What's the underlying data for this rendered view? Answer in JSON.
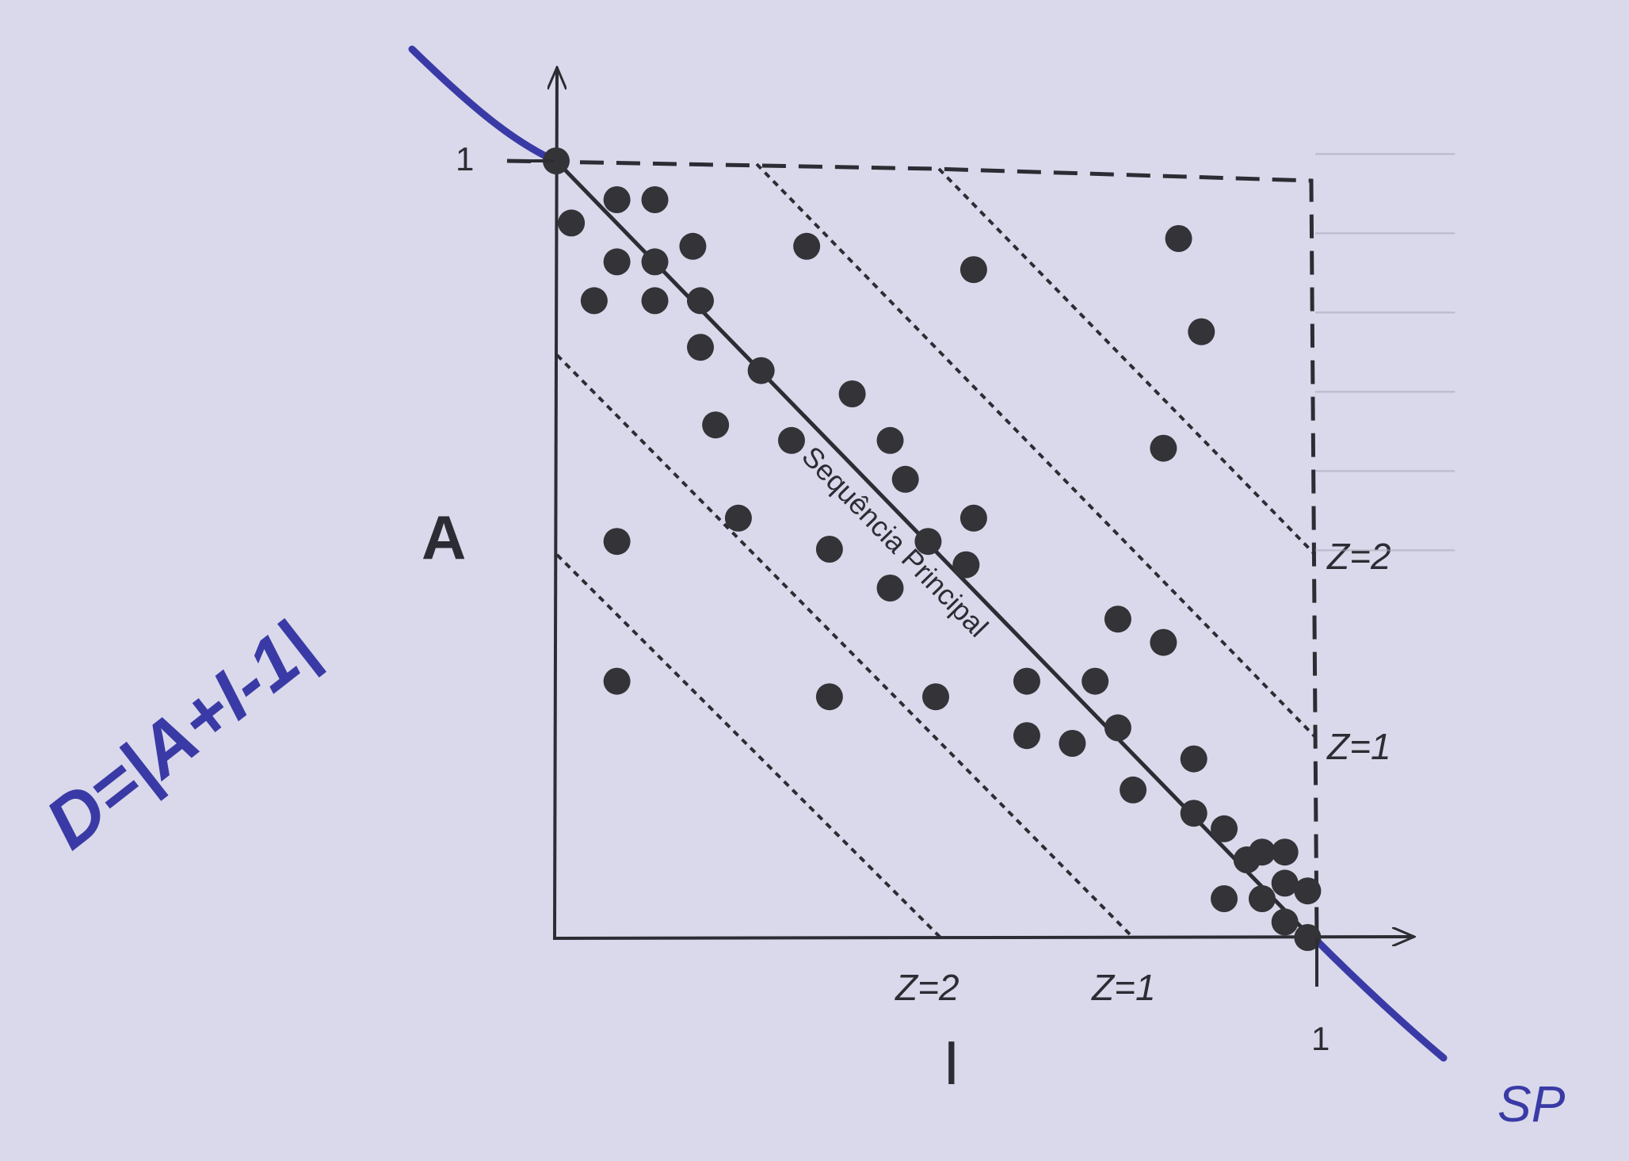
{
  "chart_data": {
    "type": "scatter",
    "ylabel": "A",
    "xlabel": "I",
    "xlim": [
      0,
      1
    ],
    "ylim": [
      0,
      1
    ],
    "ticks": {
      "y_max_label": "1",
      "x_max_label": "1"
    },
    "main_sequence": {
      "label": "Sequência Principal",
      "equation": "A + I = 1"
    },
    "zones": [
      {
        "label": "Z=1",
        "offset": 0.25
      },
      {
        "label": "Z=2",
        "offset": 0.5
      }
    ],
    "points": [
      [
        0.0,
        1.0
      ],
      [
        0.02,
        0.92
      ],
      [
        0.08,
        0.95
      ],
      [
        0.13,
        0.95
      ],
      [
        0.08,
        0.87
      ],
      [
        0.13,
        0.87
      ],
      [
        0.18,
        0.89
      ],
      [
        0.05,
        0.82
      ],
      [
        0.13,
        0.82
      ],
      [
        0.19,
        0.82
      ],
      [
        0.33,
        0.89
      ],
      [
        0.19,
        0.76
      ],
      [
        0.27,
        0.73
      ],
      [
        0.21,
        0.66
      ],
      [
        0.31,
        0.64
      ],
      [
        0.39,
        0.7
      ],
      [
        0.44,
        0.64
      ],
      [
        0.46,
        0.59
      ],
      [
        0.24,
        0.54
      ],
      [
        0.08,
        0.51
      ],
      [
        0.36,
        0.5
      ],
      [
        0.49,
        0.51
      ],
      [
        0.55,
        0.54
      ],
      [
        0.54,
        0.48
      ],
      [
        0.44,
        0.45
      ],
      [
        0.55,
        0.86
      ],
      [
        0.08,
        0.33
      ],
      [
        0.36,
        0.31
      ],
      [
        0.5,
        0.31
      ],
      [
        0.62,
        0.33
      ],
      [
        0.62,
        0.26
      ],
      [
        0.68,
        0.25
      ],
      [
        0.71,
        0.33
      ],
      [
        0.74,
        0.41
      ],
      [
        0.8,
        0.38
      ],
      [
        0.74,
        0.27
      ],
      [
        0.76,
        0.19
      ],
      [
        0.84,
        0.23
      ],
      [
        0.84,
        0.16
      ],
      [
        0.88,
        0.14
      ],
      [
        0.91,
        0.1
      ],
      [
        0.93,
        0.11
      ],
      [
        0.96,
        0.11
      ],
      [
        0.88,
        0.05
      ],
      [
        0.93,
        0.05
      ],
      [
        0.96,
        0.07
      ],
      [
        0.99,
        0.06
      ],
      [
        0.96,
        0.02
      ],
      [
        0.99,
        0.0
      ],
      [
        0.8,
        0.63
      ],
      [
        0.82,
        0.9
      ],
      [
        0.85,
        0.78
      ]
    ]
  },
  "annotations": {
    "handwritten_equation": "D=|A+I-1|",
    "handwritten_note": "SP"
  },
  "colors": {
    "ink": "#2c2c34",
    "pen": "#3a3aa6",
    "paper": "#d9d9eb",
    "dot": "#333338"
  }
}
